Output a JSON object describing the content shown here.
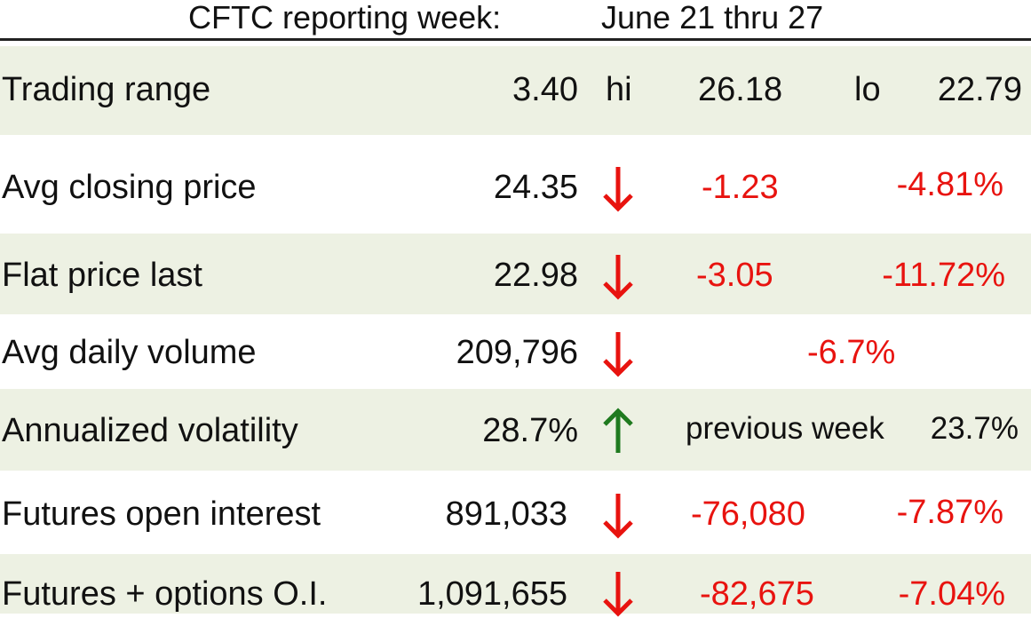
{
  "header": {
    "label": "CFTC reporting week:",
    "week": "June 21 thru 27"
  },
  "colors": {
    "row_shade": "#edf1e3",
    "negative": "#e8130f",
    "down_arrow": "#e8130f",
    "up_arrow": "#1f7a1f",
    "rule": "#222222"
  },
  "rows": [
    {
      "label": "Trading range",
      "value": "3.40",
      "hi_label": "hi",
      "hi": "26.18",
      "lo_label": "lo",
      "lo": "22.79"
    },
    {
      "label": "Avg closing price",
      "value": "24.35",
      "arrow": "down-arrow-icon",
      "change": "-1.23",
      "pct": "-4.81%"
    },
    {
      "label": "Flat price last",
      "value": "22.98",
      "arrow": "down-arrow-icon",
      "change": "-3.05",
      "pct": "-11.72%"
    },
    {
      "label": "Avg daily volume",
      "value": "209,796",
      "arrow": "down-arrow-icon",
      "pct": "-6.7%"
    },
    {
      "label": "Annualized volatility",
      "value": "28.7%",
      "arrow": "up-arrow-icon",
      "prev_label": "previous week",
      "prev": "23.7%"
    },
    {
      "label": "Futures open interest",
      "value": "891,033",
      "arrow": "down-arrow-icon",
      "change": "-76,080",
      "pct": "-7.87%"
    },
    {
      "label": "Futures + options O.I.",
      "value": "1,091,655",
      "arrow": "down-arrow-icon",
      "change": "-82,675",
      "pct": "-7.04%"
    }
  ]
}
